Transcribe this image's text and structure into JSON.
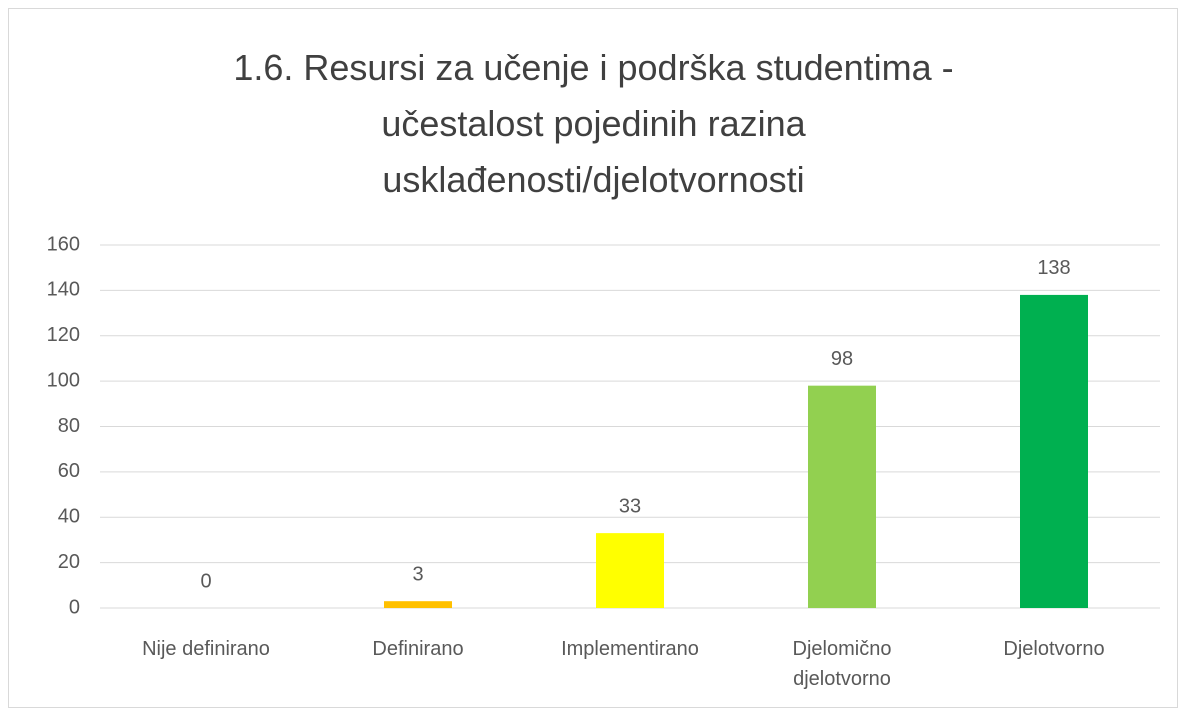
{
  "chart_data": {
    "type": "bar",
    "title": "1.6. Resursi za učenje i podrška studentima - učestalost pojedinih razina usklađenosti/djelotvornosti",
    "categories": [
      "Nije definirano",
      "Definirano",
      "Implementirano",
      "Djelomično djelotvorno",
      "Djelotvorno"
    ],
    "values": [
      0,
      3,
      33,
      98,
      138
    ],
    "colors": [
      "#ff0000",
      "#ffc000",
      "#ffff00",
      "#92d050",
      "#00b050"
    ],
    "ylim": [
      0,
      160
    ],
    "yticks": [
      0,
      20,
      40,
      60,
      80,
      100,
      120,
      140,
      160
    ],
    "grid": true
  }
}
